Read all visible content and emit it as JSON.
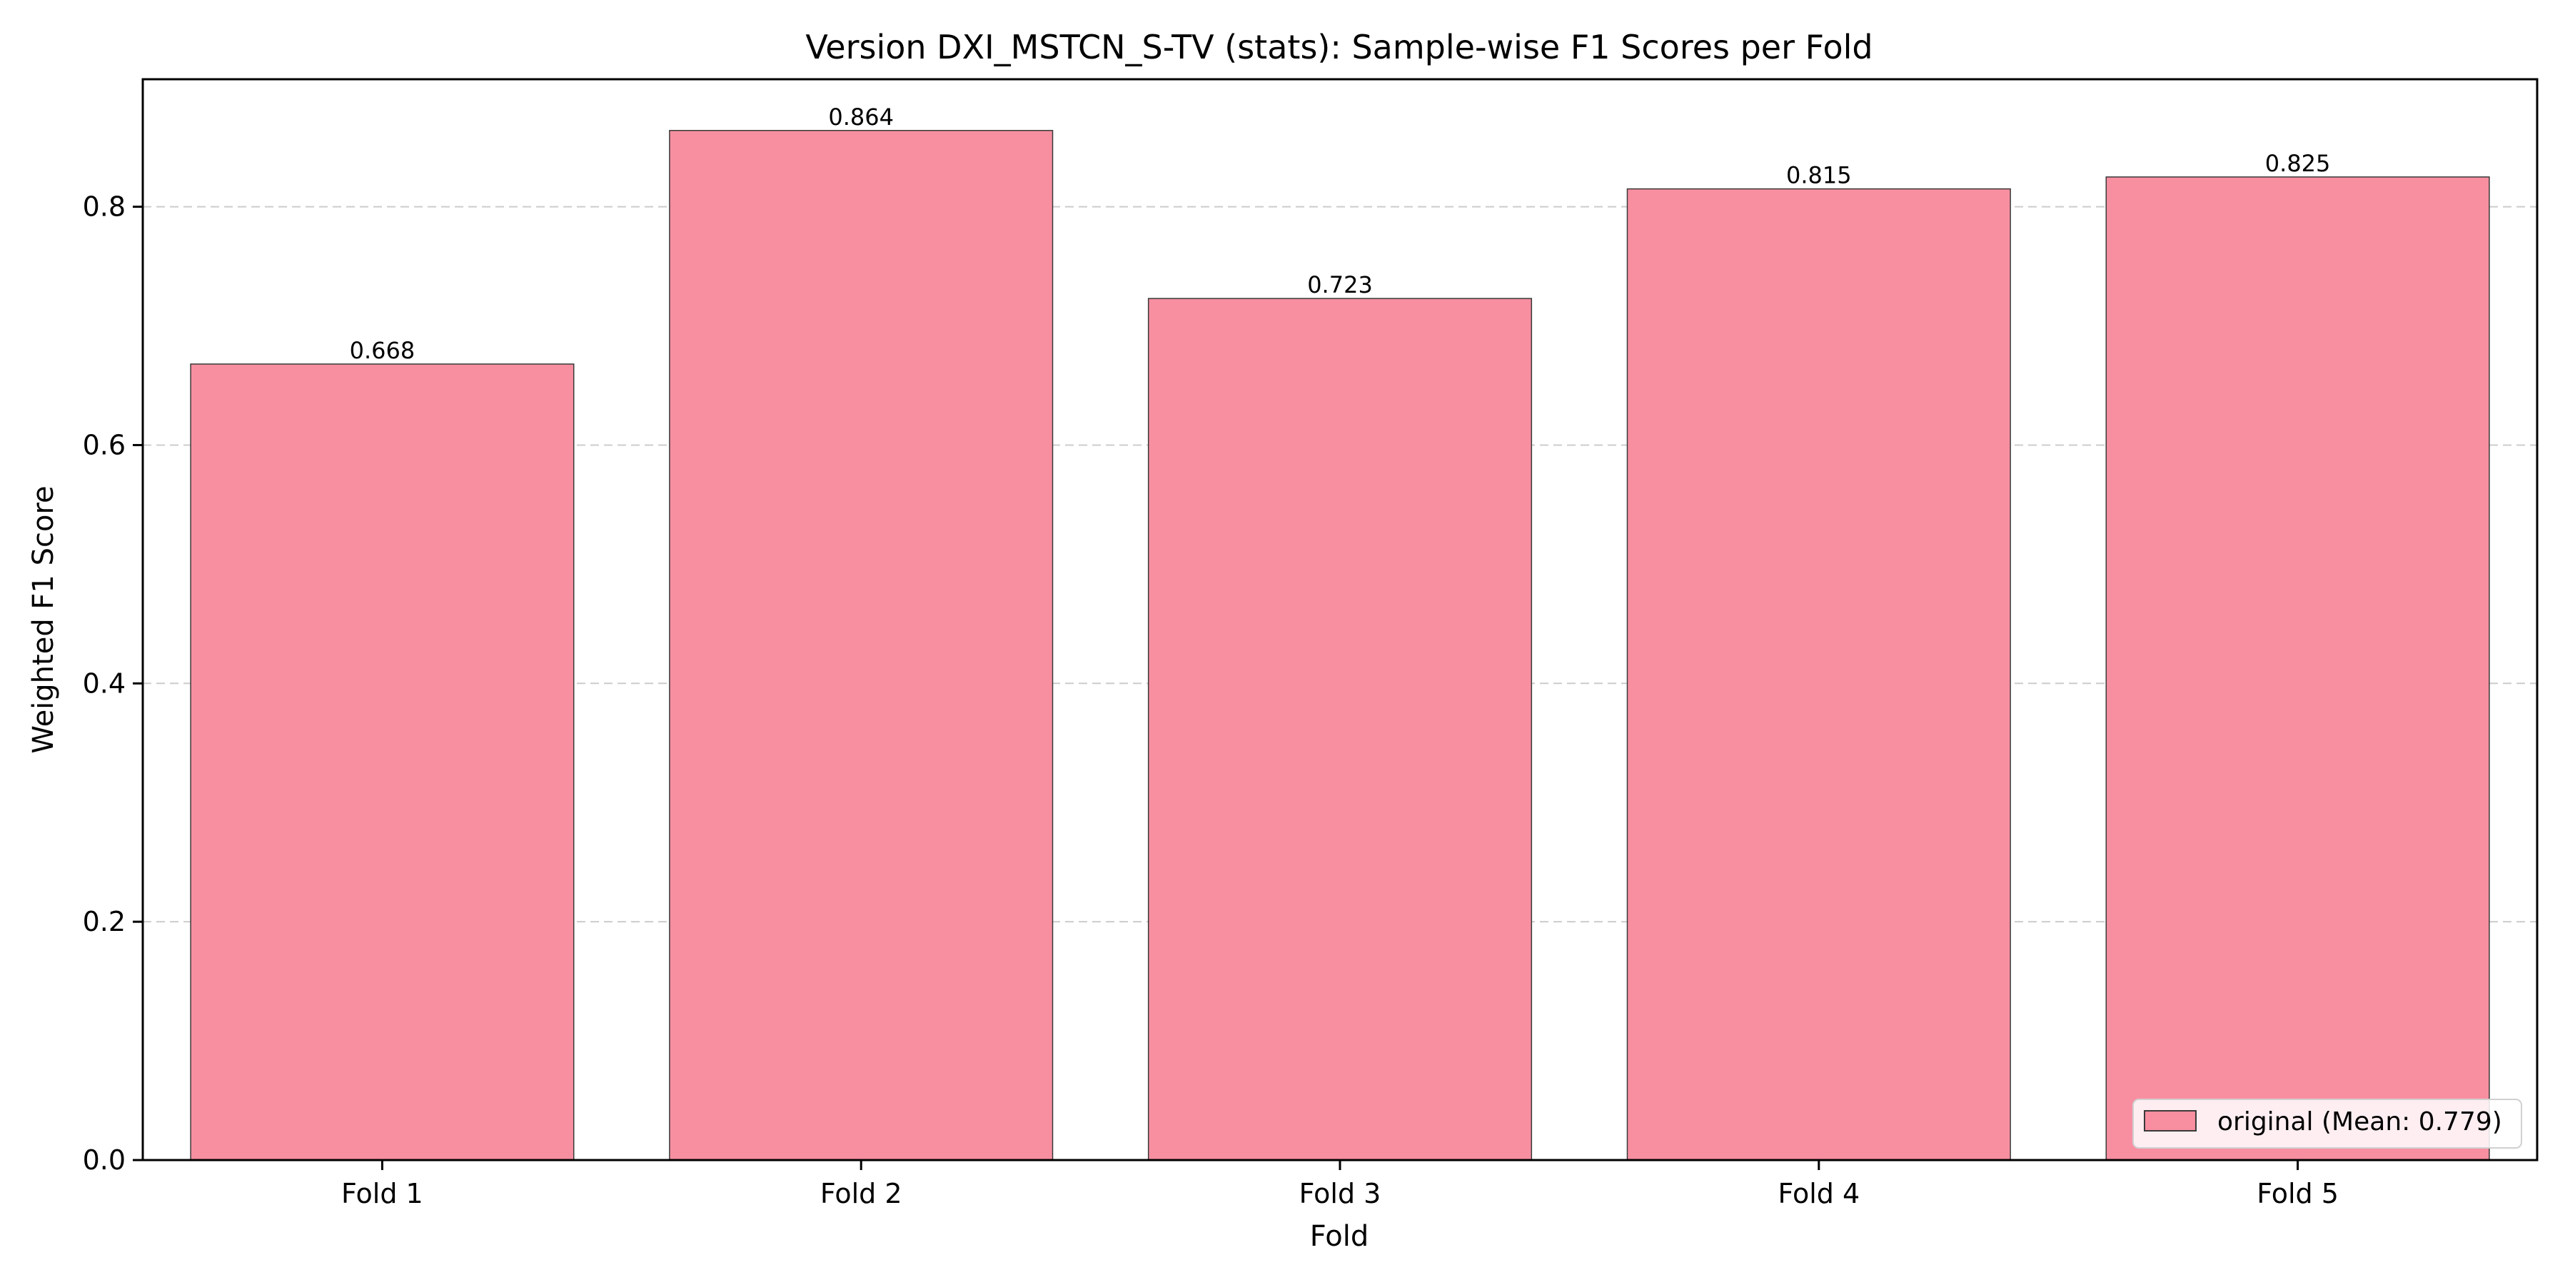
{
  "chart_data": {
    "type": "bar",
    "title": "Version DXI_MSTCN_S-TV (stats): Sample-wise F1 Scores per Fold",
    "xlabel": "Fold",
    "ylabel": "Weighted F1 Score",
    "categories": [
      "Fold 1",
      "Fold 2",
      "Fold 3",
      "Fold 4",
      "Fold 5"
    ],
    "series": [
      {
        "name": "original (Mean: 0.779)",
        "values": [
          0.668,
          0.864,
          0.723,
          0.815,
          0.825
        ],
        "data_labels": [
          "0.668",
          "0.864",
          "0.723",
          "0.815",
          "0.825"
        ]
      }
    ],
    "ylim": [
      0,
      0.907
    ],
    "yticks": [
      0.0,
      0.2,
      0.4,
      0.6,
      0.8
    ],
    "ytick_labels": [
      "0.0",
      "0.2",
      "0.4",
      "0.6",
      "0.8"
    ],
    "grid": "y-dashed",
    "legend_placement": "lower-right",
    "colors": {
      "bar_fill": "#f78fa1",
      "bar_edge": "#3a3a3a",
      "grid": "#cccccc",
      "axis": "#000000"
    }
  }
}
